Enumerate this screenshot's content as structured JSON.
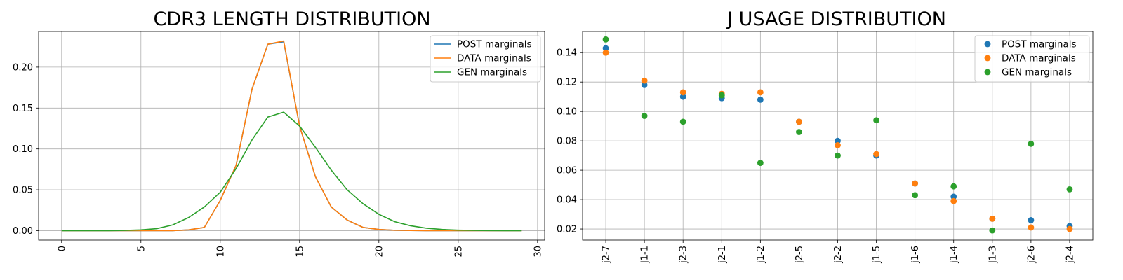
{
  "chart_data": [
    {
      "type": "line",
      "title": "CDR3 LENGTH DISTRIBUTION",
      "xlabel": "",
      "ylabel": "",
      "xlim": [
        -1.45,
        30.45
      ],
      "ylim": [
        -0.0116,
        0.2436
      ],
      "xticks": [
        0,
        5,
        10,
        15,
        20,
        25,
        30
      ],
      "yticks": [
        0.0,
        0.05,
        0.1,
        0.15,
        0.2
      ],
      "ytick_labels": [
        "0.00",
        "0.05",
        "0.10",
        "0.15",
        "0.20"
      ],
      "x_tick_rotation": 90,
      "grid": true,
      "legend_position": "upper right",
      "x": [
        0,
        1,
        2,
        3,
        4,
        5,
        6,
        7,
        8,
        9,
        10,
        11,
        12,
        13,
        14,
        15,
        16,
        17,
        18,
        19,
        20,
        21,
        22,
        23,
        24,
        25,
        26,
        27,
        28,
        29
      ],
      "series": [
        {
          "name": "POST marginals",
          "color": "#1f77b4",
          "values": [
            0,
            0,
            0,
            0,
            0,
            0,
            0,
            0,
            0.001,
            0.004,
            0.037,
            0.08,
            0.173,
            0.228,
            0.231,
            0.128,
            0.066,
            0.029,
            0.013,
            0.004,
            0.0015,
            0.0005,
            0.0002,
            0,
            0,
            0,
            0,
            0,
            0,
            0
          ]
        },
        {
          "name": "DATA marginals",
          "color": "#ff7f0e",
          "values": [
            0,
            0,
            0,
            0,
            0,
            0,
            0,
            0,
            0.001,
            0.004,
            0.037,
            0.08,
            0.173,
            0.228,
            0.232,
            0.128,
            0.066,
            0.029,
            0.013,
            0.004,
            0.0015,
            0.0005,
            0.0002,
            0,
            0,
            0,
            0,
            0,
            0,
            0
          ]
        },
        {
          "name": "GEN marginals",
          "color": "#2ca02c",
          "values": [
            0,
            0,
            0,
            0,
            0.0003,
            0.001,
            0.0025,
            0.007,
            0.016,
            0.029,
            0.047,
            0.076,
            0.111,
            0.139,
            0.145,
            0.128,
            0.102,
            0.074,
            0.05,
            0.033,
            0.02,
            0.011,
            0.006,
            0.003,
            0.0015,
            0.0007,
            0.0003,
            0.0001,
            0,
            0
          ]
        }
      ]
    },
    {
      "type": "scatter",
      "title": "J USAGE DISTRIBUTION",
      "xlabel": "",
      "ylabel": "",
      "categories": [
        "j2-7",
        "j1-1",
        "j2-3",
        "j2-1",
        "j1-2",
        "j2-5",
        "j2-2",
        "j1-5",
        "j1-6",
        "j1-4",
        "j1-3",
        "j2-6",
        "j2-4"
      ],
      "ylim": [
        0.0124,
        0.1544
      ],
      "yticks": [
        0.02,
        0.04,
        0.06,
        0.08,
        0.1,
        0.12,
        0.14
      ],
      "ytick_labels": [
        "0.02",
        "0.04",
        "0.06",
        "0.08",
        "0.10",
        "0.12",
        "0.14"
      ],
      "x_tick_rotation": 90,
      "grid": true,
      "legend_position": "upper right",
      "series": [
        {
          "name": "POST marginals",
          "color": "#1f77b4",
          "values": [
            0.143,
            0.118,
            0.11,
            0.109,
            0.108,
            0.093,
            0.08,
            0.07,
            0.051,
            0.042,
            0.027,
            0.026,
            0.022
          ]
        },
        {
          "name": "DATA marginals",
          "color": "#ff7f0e",
          "values": [
            0.14,
            0.121,
            0.113,
            0.112,
            0.113,
            0.093,
            0.077,
            0.071,
            0.051,
            0.039,
            0.027,
            0.021,
            0.02
          ]
        },
        {
          "name": "GEN marginals",
          "color": "#2ca02c",
          "values": [
            0.149,
            0.097,
            0.093,
            0.111,
            0.065,
            0.086,
            0.07,
            0.094,
            0.043,
            0.049,
            0.019,
            0.078,
            0.047
          ]
        }
      ]
    }
  ]
}
